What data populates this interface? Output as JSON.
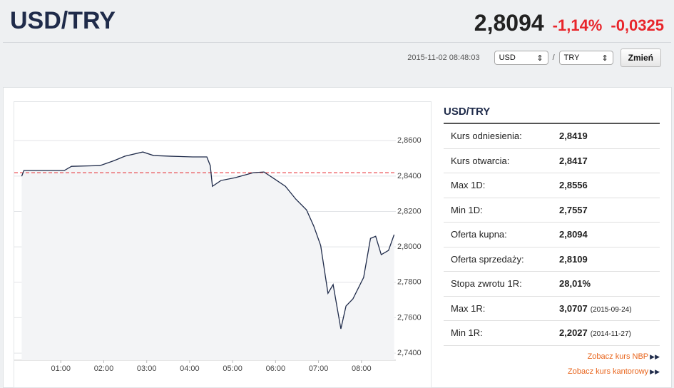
{
  "header": {
    "title": "USD/TRY",
    "price": "2,8094",
    "change_pct": "-1,14%",
    "change_abs": "-0,0325",
    "timestamp": "2015-11-02 08:48:03",
    "base_currency": "USD",
    "separator": "/",
    "quote_currency": "TRY",
    "button": "Zmień"
  },
  "panel": {
    "title": "USD/TRY",
    "rows": [
      {
        "label": "Kurs odniesienia:",
        "value": "2,8419"
      },
      {
        "label": "Kurs otwarcia:",
        "value": "2,8417"
      },
      {
        "label": "Max 1D:",
        "value": "2,8556"
      },
      {
        "label": "Min 1D:",
        "value": "2,7557"
      },
      {
        "label": "Oferta kupna:",
        "value": "2,8094"
      },
      {
        "label": "Oferta sprzedaży:",
        "value": "2,8109"
      },
      {
        "label": "Stopa zwrotu 1R:",
        "value": "28,01%"
      },
      {
        "label": "Max 1R:",
        "value": "3,0707",
        "note": "(2015-09-24)"
      },
      {
        "label": "Min 1R:",
        "value": "2,2027",
        "note": "(2014-11-27)"
      }
    ],
    "links": [
      "Zobacz kurs NBP",
      "Zobacz kurs kantorowy"
    ]
  },
  "chart_data": {
    "type": "line",
    "color": "#1f2b4a",
    "area_color": "#f3f4f6",
    "reference_line": 2.8419,
    "reference_color": "#e8252b",
    "x": [
      0.09,
      0.14,
      0.42,
      1.08,
      1.25,
      1.91,
      2.24,
      2.49,
      2.91,
      3.16,
      3.57,
      4.07,
      4.4,
      4.48,
      4.53,
      4.73,
      5.06,
      5.48,
      5.73,
      5.98,
      6.23,
      6.47,
      6.72,
      6.89,
      7.05,
      7.22,
      7.34,
      7.52,
      7.64,
      7.8,
      8.05,
      8.21,
      8.33,
      8.46,
      8.63,
      8.76
    ],
    "values": [
      2.8399,
      2.8431,
      2.8431,
      2.8431,
      2.8455,
      2.8459,
      2.8487,
      2.8512,
      2.8536,
      2.8516,
      2.8512,
      2.8508,
      2.8508,
      2.8459,
      2.8342,
      2.8375,
      2.8391,
      2.8419,
      2.8423,
      2.8383,
      2.8342,
      2.827,
      2.8209,
      2.8117,
      2.8008,
      2.7738,
      2.7787,
      2.7537,
      2.7666,
      2.7706,
      2.7827,
      2.8048,
      2.806,
      2.7956,
      2.798,
      2.8069
    ],
    "xlim": [
      0,
      8.8
    ],
    "xticks": [
      {
        "value": 1,
        "label": "01:00"
      },
      {
        "value": 2,
        "label": "02:00"
      },
      {
        "value": 3,
        "label": "03:00"
      },
      {
        "value": 4,
        "label": "04:00"
      },
      {
        "value": 5,
        "label": "05:00"
      },
      {
        "value": 6,
        "label": "06:00"
      },
      {
        "value": 7,
        "label": "07:00"
      },
      {
        "value": 8,
        "label": "08:00"
      }
    ],
    "ylim": [
      2.736,
      2.877
    ],
    "yticks": [
      {
        "value": 2.74,
        "label": "2,7400"
      },
      {
        "value": 2.76,
        "label": "2,7600"
      },
      {
        "value": 2.78,
        "label": "2,7800"
      },
      {
        "value": 2.8,
        "label": "2,8000"
      },
      {
        "value": 2.82,
        "label": "2,8200"
      },
      {
        "value": 2.84,
        "label": "2,8400"
      },
      {
        "value": 2.86,
        "label": "2,8600"
      }
    ],
    "grid": true
  }
}
